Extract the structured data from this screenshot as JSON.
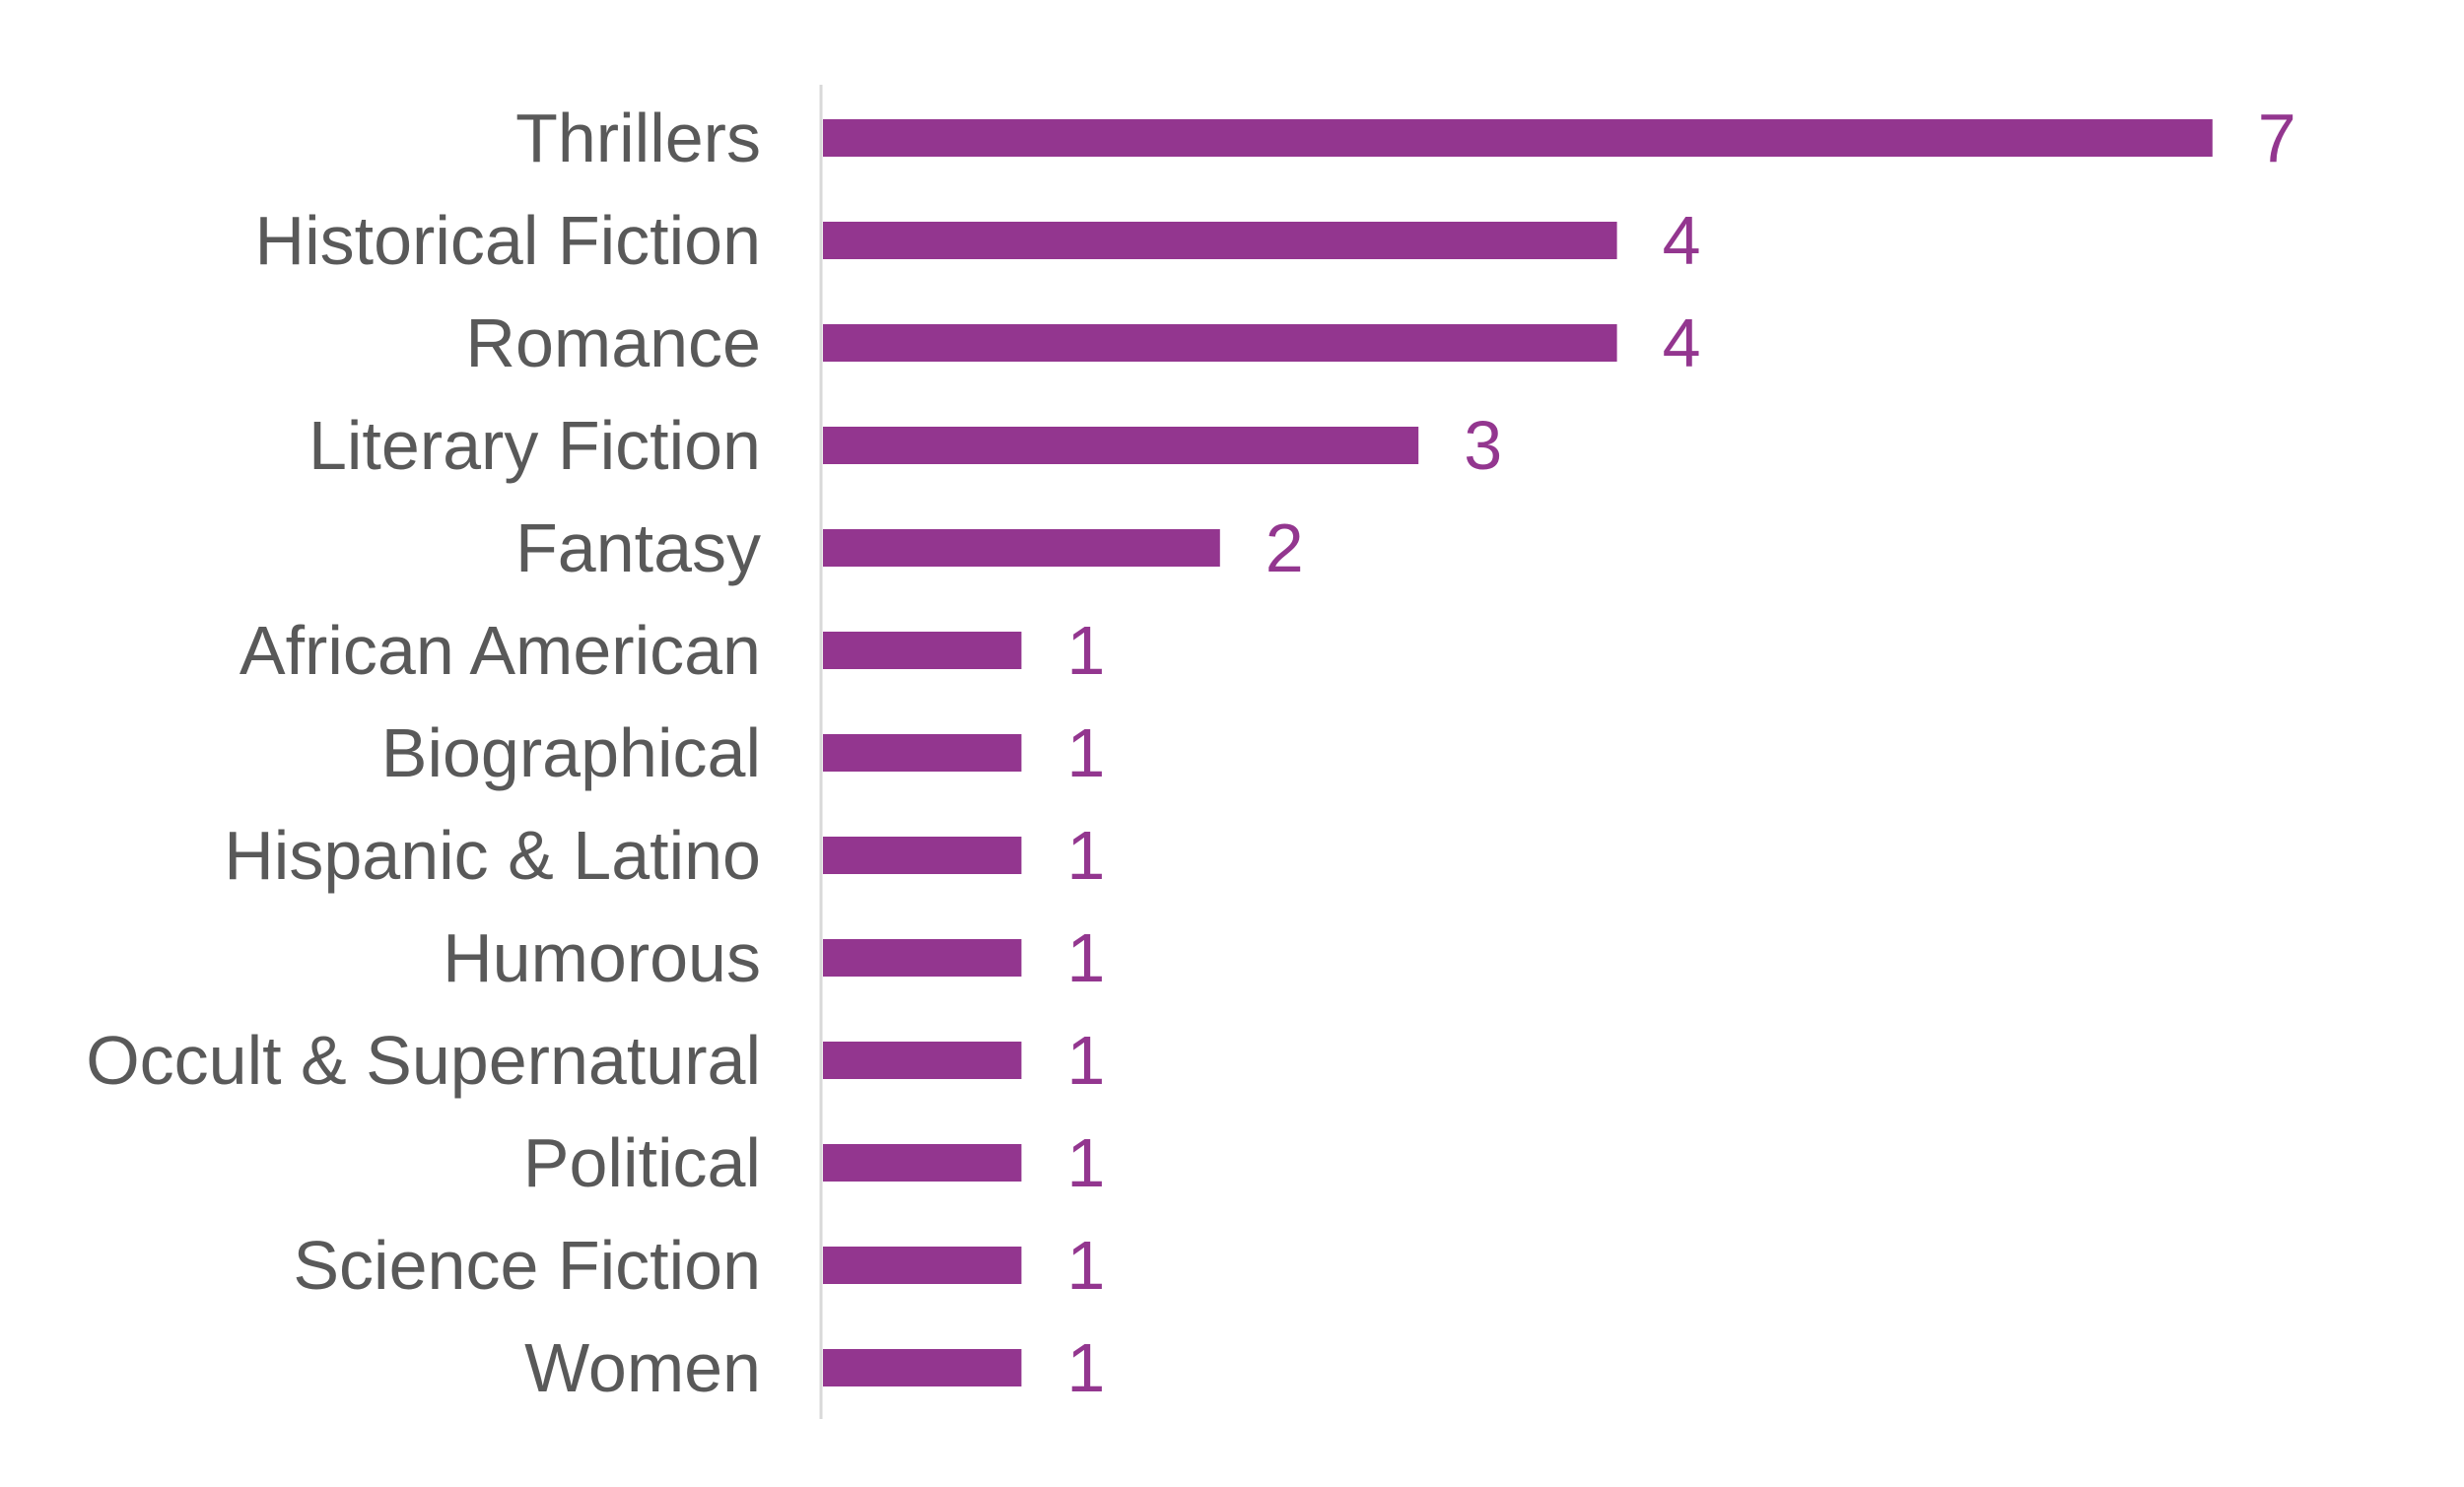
{
  "chart_data": {
    "type": "bar",
    "orientation": "horizontal",
    "categories": [
      "Thrillers",
      "Historical Fiction",
      "Romance",
      "Literary Fiction",
      "Fantasy",
      "African American",
      "Biographical",
      "Hispanic & Latino",
      "Humorous",
      "Occult & Supernatural",
      "Political",
      "Science Fiction",
      "Women"
    ],
    "values": [
      7,
      4,
      4,
      3,
      2,
      1,
      1,
      1,
      1,
      1,
      1,
      1,
      1
    ],
    "data_labels": [
      "7",
      "4",
      "4",
      "3",
      "2",
      "1",
      "1",
      "1",
      "1",
      "1",
      "1",
      "1",
      "1"
    ],
    "xlim": [
      0,
      7
    ],
    "grid": false,
    "legend": "none"
  },
  "colors": {
    "bar": "#93368f",
    "value_label": "#93368f",
    "category_label": "#595959",
    "axis_line": "#d9d9d9"
  }
}
